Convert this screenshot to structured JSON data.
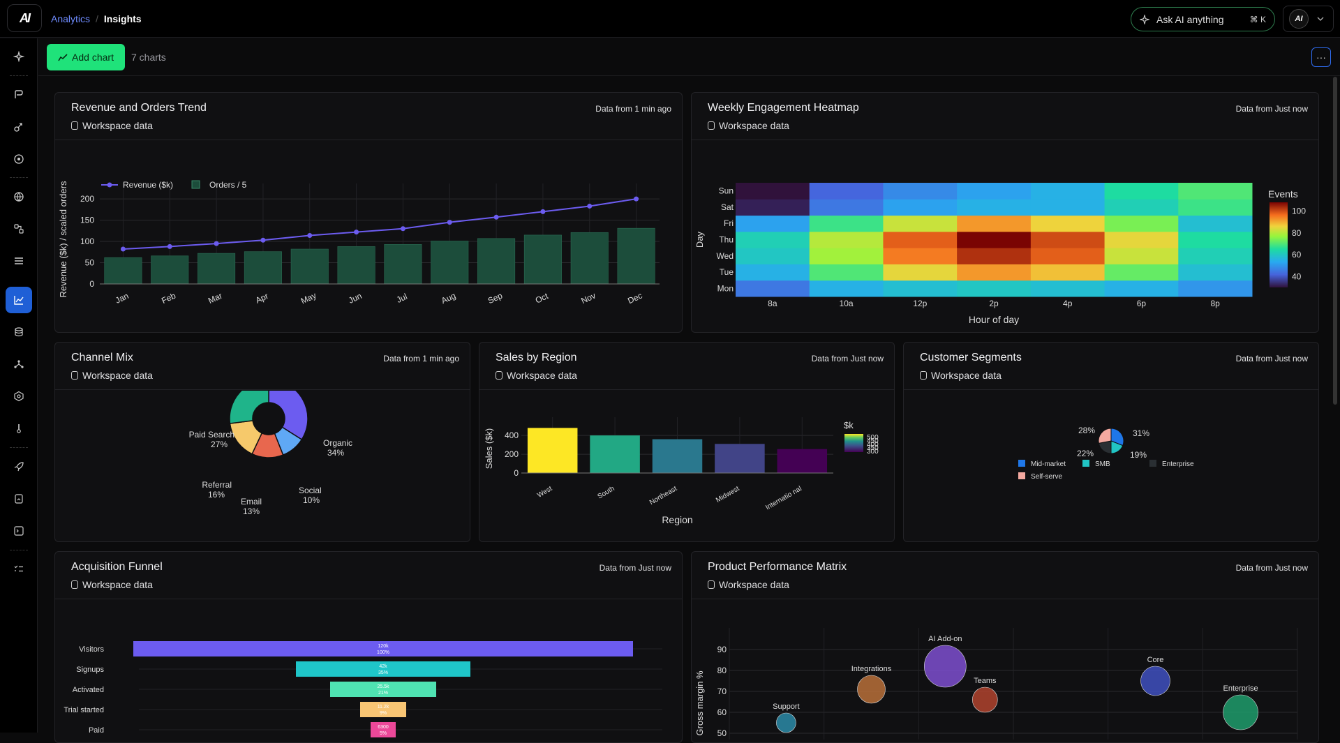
{
  "header": {
    "logo": "AI",
    "breadcrumb": [
      "Analytics",
      "Insights"
    ],
    "ask_ai": "Ask AI anything",
    "ask_ai_shortcut": "⌘ K",
    "avatar": "AI"
  },
  "toolbar": {
    "add_chart": "Add chart",
    "chart_count": "7 charts",
    "more": "···"
  },
  "sidebar": {
    "icons": [
      "sparkle-icon",
      "pen-icon",
      "flow-icon",
      "target-icon",
      "globe-icon",
      "nodes-icon",
      "list-icon",
      "chart-icon",
      "database-icon",
      "network-icon",
      "shield-icon",
      "thermometer-icon",
      "rocket-icon",
      "file-icon",
      "terminal-icon",
      "checklist-icon"
    ],
    "active": "chart-icon"
  },
  "charts": {
    "revenue": {
      "title": "Revenue and Orders Trend",
      "source": "Workspace data",
      "freshness": "Data from 1 min ago"
    },
    "heatmap": {
      "title": "Weekly Engagement Heatmap",
      "source": "Workspace data",
      "freshness": "Data from Just now"
    },
    "channel": {
      "title": "Channel Mix",
      "source": "Workspace data",
      "freshness": "Data from 1 min ago"
    },
    "region": {
      "title": "Sales by Region",
      "source": "Workspace data",
      "freshness": "Data from Just now"
    },
    "segments": {
      "title": "Customer Segments",
      "source": "Workspace data",
      "freshness": "Data from Just now"
    },
    "funnel": {
      "title": "Acquisition Funnel",
      "source": "Workspace data",
      "freshness": "Data from Just now"
    },
    "matrix": {
      "title": "Product Performance Matrix",
      "source": "Workspace data",
      "freshness": "Data from Just now"
    }
  },
  "chart_data": [
    {
      "id": "revenue",
      "type": "bar+line",
      "categories": [
        "Jan",
        "Feb",
        "Mar",
        "Apr",
        "May",
        "Jun",
        "Jul",
        "Aug",
        "Sep",
        "Oct",
        "Nov",
        "Dec"
      ],
      "series": [
        {
          "name": "Revenue ($k)",
          "type": "line",
          "color": "#6c5cf0",
          "values": [
            82,
            88,
            95,
            103,
            114,
            122,
            130,
            145,
            157,
            170,
            183,
            200
          ]
        },
        {
          "name": "Orders / 5",
          "type": "bar",
          "color": "#1c4d3b",
          "values": [
            62,
            66,
            72,
            76,
            82,
            88,
            93,
            101,
            107,
            115,
            121,
            131
          ]
        }
      ],
      "ylabel": "Revenue ($k) / scaled orders",
      "ylim": [
        0,
        210
      ],
      "yticks": [
        0,
        50,
        100,
        150,
        200
      ],
      "legend": "top-left",
      "grid": true
    },
    {
      "id": "heatmap",
      "type": "heatmap",
      "x": [
        "8a",
        "10a",
        "12p",
        "2p",
        "4p",
        "6p",
        "8p"
      ],
      "y": [
        "Mon",
        "Tue",
        "Wed",
        "Thu",
        "Fri",
        "Sat",
        "Sun"
      ],
      "z": [
        [
          45,
          55,
          58,
          60,
          58,
          55,
          50
        ],
        [
          55,
          70,
          85,
          92,
          88,
          72,
          58
        ],
        [
          60,
          78,
          95,
          103,
          98,
          82,
          62
        ],
        [
          62,
          80,
          98,
          108,
          100,
          85,
          65
        ],
        [
          52,
          68,
          82,
          92,
          86,
          74,
          58
        ],
        [
          32,
          45,
          52,
          55,
          55,
          62,
          68
        ],
        [
          30,
          42,
          48,
          52,
          55,
          65,
          70
        ]
      ],
      "xlabel": "Hour of day",
      "ylabel": "Day",
      "colorbar_title": "Events",
      "colorbar_ticks": [
        40,
        60,
        80,
        100
      ]
    },
    {
      "id": "channel",
      "type": "pie",
      "hole": true,
      "slices": [
        {
          "label": "Organic",
          "value": 34,
          "text": "34%",
          "color": "#6c5cf0"
        },
        {
          "label": "Social",
          "value": 10,
          "text": "10%",
          "color": "#5fa8f5"
        },
        {
          "label": "Email",
          "value": 13,
          "text": "13%",
          "color": "#e8674e"
        },
        {
          "label": "Referral",
          "value": 16,
          "text": "16%",
          "color": "#f6c96b"
        },
        {
          "label": "Paid Search",
          "value": 27,
          "text": "27%",
          "color": "#1fb48a"
        }
      ]
    },
    {
      "id": "region",
      "type": "bar",
      "categories": [
        "West",
        "South",
        "Northeast",
        "Midwest",
        "Internatio nal"
      ],
      "values": [
        480,
        400,
        360,
        310,
        255
      ],
      "colors": [
        "#fde725",
        "#22a884",
        "#2a788e",
        "#414487",
        "#440154"
      ],
      "xlabel": "Region",
      "ylabel": "Sales ($k)",
      "ylim": [
        0,
        520
      ],
      "yticks": [
        0,
        200,
        400
      ],
      "colorbar_title": "$k",
      "colorbar_ticks": [
        300,
        350,
        400,
        450,
        500
      ]
    },
    {
      "id": "segments",
      "type": "pie",
      "slices": [
        {
          "label": "Mid-market",
          "value": 31,
          "text": "31%",
          "color": "#1f77e8"
        },
        {
          "label": "SMB",
          "value": 19,
          "text": "19%",
          "color": "#21c4c4"
        },
        {
          "label": "Enterprise",
          "value": 22,
          "text": "22%",
          "color": "#2a2f33"
        },
        {
          "label": "Self-serve",
          "value": 28,
          "text": "28%",
          "color": "#f4a9a0"
        }
      ]
    },
    {
      "id": "funnel",
      "type": "funnel",
      "stages": [
        {
          "label": "Visitors",
          "value": 120000,
          "text": "120k",
          "pct": "100%",
          "color": "#6c5cf0"
        },
        {
          "label": "Signups",
          "value": 42000,
          "text": "42k",
          "pct": "35%",
          "color": "#1fc6c9"
        },
        {
          "label": "Activated",
          "value": 25500,
          "text": "25.5k",
          "pct": "21%",
          "color": "#4fe2b2"
        },
        {
          "label": "Trial started",
          "value": 11200,
          "text": "11.2k",
          "pct": "9%",
          "color": "#f8c574"
        },
        {
          "label": "Paid",
          "value": 6300,
          "text": "6300",
          "pct": "5%",
          "color": "#ec4899"
        }
      ]
    },
    {
      "id": "matrix",
      "type": "scatter",
      "ylabel": "Gross margin %",
      "yticks": [
        50,
        60,
        70,
        80,
        90
      ],
      "ylim": [
        48,
        96
      ],
      "xlim": [
        0,
        100
      ],
      "points": [
        {
          "label": "Support",
          "x": 10,
          "y": 55,
          "size": 14,
          "color": "#2b8ba8"
        },
        {
          "label": "Integrations",
          "x": 25,
          "y": 71,
          "size": 20,
          "color": "#b8703a"
        },
        {
          "label": "AI Add-on",
          "x": 38,
          "y": 82,
          "size": 30,
          "color": "#7e4fd0"
        },
        {
          "label": "Teams",
          "x": 45,
          "y": 66,
          "size": 18,
          "color": "#b0432e"
        },
        {
          "label": "Core",
          "x": 75,
          "y": 75,
          "size": 21,
          "color": "#4050c0"
        },
        {
          "label": "Enterprise",
          "x": 90,
          "y": 60,
          "size": 25,
          "color": "#1f9c6c"
        }
      ]
    }
  ]
}
